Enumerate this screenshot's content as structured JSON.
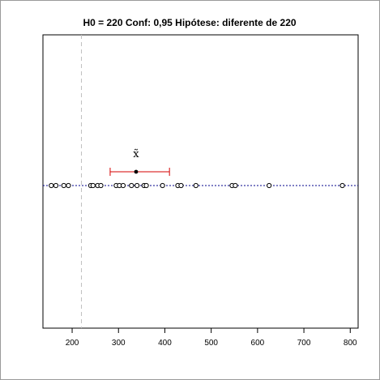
{
  "chart_data": {
    "type": "scatter",
    "title": "H0 = 220 Conf: 0,95 Hipótese: diferente de 220",
    "xlim": [
      137,
      817
    ],
    "xticks": [
      200,
      300,
      400,
      500,
      600,
      700,
      800
    ],
    "xtick_labels": [
      "200",
      "300",
      "400",
      "500",
      "600",
      "700",
      "800"
    ],
    "ylabel": "",
    "xlabel": "",
    "grid": false,
    "h0": 220,
    "points": [
      155,
      165,
      182,
      192,
      240,
      245,
      255,
      262,
      295,
      302,
      310,
      328,
      340,
      355,
      360,
      395,
      428,
      435,
      467,
      545,
      552,
      625,
      783
    ],
    "median": {
      "label": "x̃",
      "value": 338,
      "ci_low": 282,
      "ci_high": 410
    },
    "colors": {
      "points": "#000000",
      "dotted_line": "#00008b",
      "h0_line": "#c0c0c0",
      "interval": "#d40000",
      "median": "#000000"
    }
  }
}
